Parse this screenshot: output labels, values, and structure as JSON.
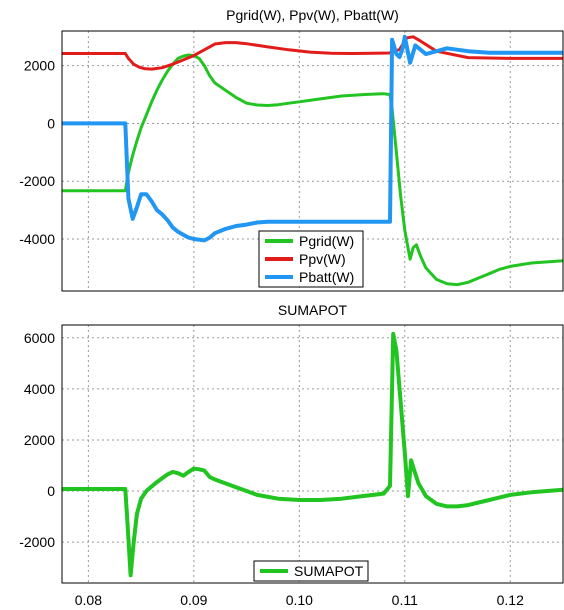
{
  "chart_data": [
    {
      "type": "line",
      "title": "Pgrid(W), Ppv(W), Pbatt(W)",
      "xlabel": "",
      "ylabel": "",
      "xlim": [
        0.0775,
        0.125
      ],
      "ylim": [
        -5800,
        3200
      ],
      "grid": true,
      "legend_position": "bottom-center",
      "xticks": [
        0.08,
        0.09,
        0.1,
        0.11,
        0.12
      ],
      "yticks": [
        2000,
        0,
        -2000,
        -4000
      ],
      "ytick_labels": [
        "2000",
        "0",
        "-2000",
        "-4000"
      ],
      "series": [
        {
          "name": "Pgrid(W)",
          "color": "#22c422",
          "x": [
            0.0775,
            0.0835,
            0.0838,
            0.0842,
            0.0846,
            0.085,
            0.0855,
            0.086,
            0.0865,
            0.087,
            0.0875,
            0.088,
            0.0885,
            0.089,
            0.0895,
            0.09,
            0.0905,
            0.091,
            0.0915,
            0.092,
            0.093,
            0.094,
            0.095,
            0.096,
            0.097,
            0.098,
            0.099,
            0.1,
            0.102,
            0.104,
            0.106,
            0.108,
            0.1086,
            0.1088,
            0.1092,
            0.1096,
            0.11,
            0.1105,
            0.1108,
            0.1111,
            0.1115,
            0.112,
            0.113,
            0.114,
            0.115,
            0.116,
            0.117,
            0.118,
            0.119,
            0.12,
            0.122,
            0.125
          ],
          "y": [
            -2330,
            -2330,
            -1700,
            -1100,
            -600,
            -150,
            300,
            750,
            1150,
            1500,
            1800,
            2050,
            2250,
            2330,
            2370,
            2350,
            2250,
            2000,
            1650,
            1400,
            1150,
            900,
            700,
            640,
            620,
            650,
            700,
            750,
            850,
            950,
            1000,
            1030,
            1000,
            500,
            -1000,
            -2500,
            -3700,
            -4700,
            -4300,
            -4200,
            -4600,
            -5000,
            -5400,
            -5550,
            -5580,
            -5500,
            -5350,
            -5200,
            -5050,
            -4950,
            -4830,
            -4750
          ]
        },
        {
          "name": "Ppv(W)",
          "color": "#e21b1b",
          "x": [
            0.0775,
            0.0835,
            0.0838,
            0.0843,
            0.0848,
            0.0853,
            0.086,
            0.087,
            0.088,
            0.089,
            0.09,
            0.091,
            0.092,
            0.093,
            0.094,
            0.095,
            0.097,
            0.099,
            0.101,
            0.103,
            0.105,
            0.107,
            0.1085,
            0.1095,
            0.1102,
            0.1108,
            0.1115,
            0.113,
            0.116,
            0.12,
            0.125
          ],
          "y": [
            2420,
            2420,
            2250,
            2050,
            1950,
            1900,
            1880,
            1930,
            2050,
            2200,
            2350,
            2550,
            2750,
            2800,
            2800,
            2760,
            2650,
            2550,
            2470,
            2430,
            2420,
            2430,
            2440,
            2560,
            2960,
            3000,
            2850,
            2500,
            2280,
            2250,
            2250
          ]
        },
        {
          "name": "Pbatt(W)",
          "color": "#2196f3",
          "x": [
            0.0775,
            0.0835,
            0.0838,
            0.0842,
            0.0846,
            0.085,
            0.0855,
            0.086,
            0.0865,
            0.087,
            0.0875,
            0.088,
            0.0885,
            0.089,
            0.0895,
            0.09,
            0.091,
            0.0915,
            0.092,
            0.093,
            0.094,
            0.095,
            0.096,
            0.097,
            0.098,
            0.1,
            0.102,
            0.104,
            0.106,
            0.108,
            0.1086,
            0.1088,
            0.1092,
            0.1095,
            0.1098,
            0.11,
            0.1105,
            0.111,
            0.112,
            0.114,
            0.116,
            0.118,
            0.12,
            0.122,
            0.125
          ],
          "y": [
            0,
            0,
            -2600,
            -3300,
            -2900,
            -2450,
            -2450,
            -2700,
            -3000,
            -3150,
            -3350,
            -3600,
            -3750,
            -3850,
            -3950,
            -4000,
            -4050,
            -3950,
            -3800,
            -3650,
            -3550,
            -3500,
            -3430,
            -3400,
            -3400,
            -3400,
            -3400,
            -3400,
            -3400,
            -3400,
            -3400,
            2900,
            2400,
            2300,
            2600,
            3000,
            2100,
            2700,
            2400,
            2600,
            2500,
            2450,
            2450,
            2450,
            2450
          ]
        }
      ]
    },
    {
      "type": "line",
      "title": "SUMAPOT",
      "xlabel": "",
      "ylabel": "",
      "xlim": [
        0.0775,
        0.125
      ],
      "ylim": [
        -3600,
        6500
      ],
      "grid": true,
      "legend_position": "bottom-center",
      "xticks": [
        0.08,
        0.09,
        0.1,
        0.11,
        0.12
      ],
      "xtick_labels": [
        "0.08",
        "0.09",
        "0.10",
        "0.11",
        "0.12"
      ],
      "yticks": [
        6000,
        4000,
        2000,
        0,
        -2000
      ],
      "ytick_labels": [
        "6000",
        "4000",
        "2000",
        "0",
        "-2000"
      ],
      "series": [
        {
          "name": "SUMAPOT",
          "color": "#22c422",
          "x": [
            0.0775,
            0.0835,
            0.0837,
            0.084,
            0.0843,
            0.0846,
            0.085,
            0.0855,
            0.086,
            0.0865,
            0.087,
            0.0875,
            0.088,
            0.0885,
            0.089,
            0.0895,
            0.09,
            0.0905,
            0.091,
            0.0915,
            0.092,
            0.093,
            0.094,
            0.095,
            0.096,
            0.098,
            0.1,
            0.102,
            0.104,
            0.106,
            0.108,
            0.1086,
            0.1089,
            0.1092,
            0.1096,
            0.11,
            0.1103,
            0.1106,
            0.1109,
            0.1113,
            0.112,
            0.113,
            0.114,
            0.115,
            0.116,
            0.117,
            0.118,
            0.119,
            0.12,
            0.122,
            0.125
          ],
          "y": [
            80,
            80,
            -1200,
            -3300,
            -2000,
            -900,
            -300,
            0,
            180,
            350,
            500,
            650,
            750,
            700,
            600,
            750,
            880,
            850,
            800,
            550,
            450,
            300,
            150,
            0,
            -150,
            -300,
            -350,
            -350,
            -300,
            -200,
            -100,
            200,
            6150,
            5500,
            3500,
            1500,
            -200,
            1200,
            800,
            300,
            -200,
            -500,
            -600,
            -600,
            -550,
            -450,
            -350,
            -250,
            -150,
            -50,
            50
          ]
        }
      ]
    }
  ]
}
